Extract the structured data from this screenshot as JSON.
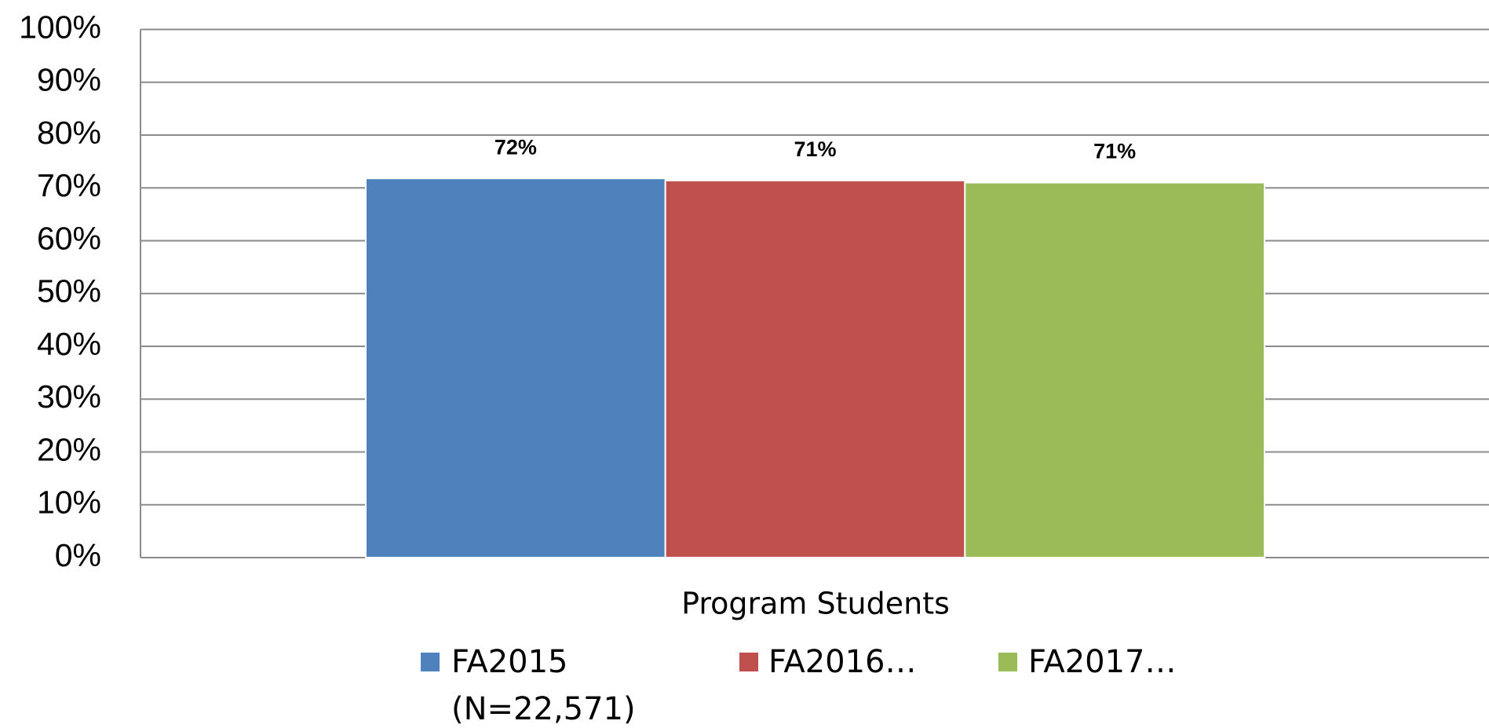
{
  "chart_data": {
    "type": "bar",
    "categories": [
      "Program Students"
    ],
    "series": [
      {
        "name": "FA2015 (N=22,571)",
        "color": "#4f81bd",
        "values": [
          71.8
        ],
        "value_labels": [
          "72%"
        ]
      },
      {
        "name": "FA2016…",
        "color": "#c0504d",
        "values": [
          71.4
        ],
        "value_labels": [
          "71%"
        ]
      },
      {
        "name": "FA2017…",
        "color": "#9bbb59",
        "values": [
          71.0
        ],
        "value_labels": [
          "71%"
        ]
      }
    ],
    "ylim": [
      0,
      100
    ],
    "yticks": [
      {
        "value": 0,
        "label": "0%"
      },
      {
        "value": 10,
        "label": "10%"
      },
      {
        "value": 20,
        "label": "20%"
      },
      {
        "value": 30,
        "label": "30%"
      },
      {
        "value": 40,
        "label": "40%"
      },
      {
        "value": 50,
        "label": "50%"
      },
      {
        "value": 60,
        "label": "60%"
      },
      {
        "value": 70,
        "label": "70%"
      },
      {
        "value": 80,
        "label": "80%"
      },
      {
        "value": 90,
        "label": "90%"
      },
      {
        "value": 100,
        "label": "100%"
      }
    ],
    "grid": true,
    "legend": "bottom"
  }
}
